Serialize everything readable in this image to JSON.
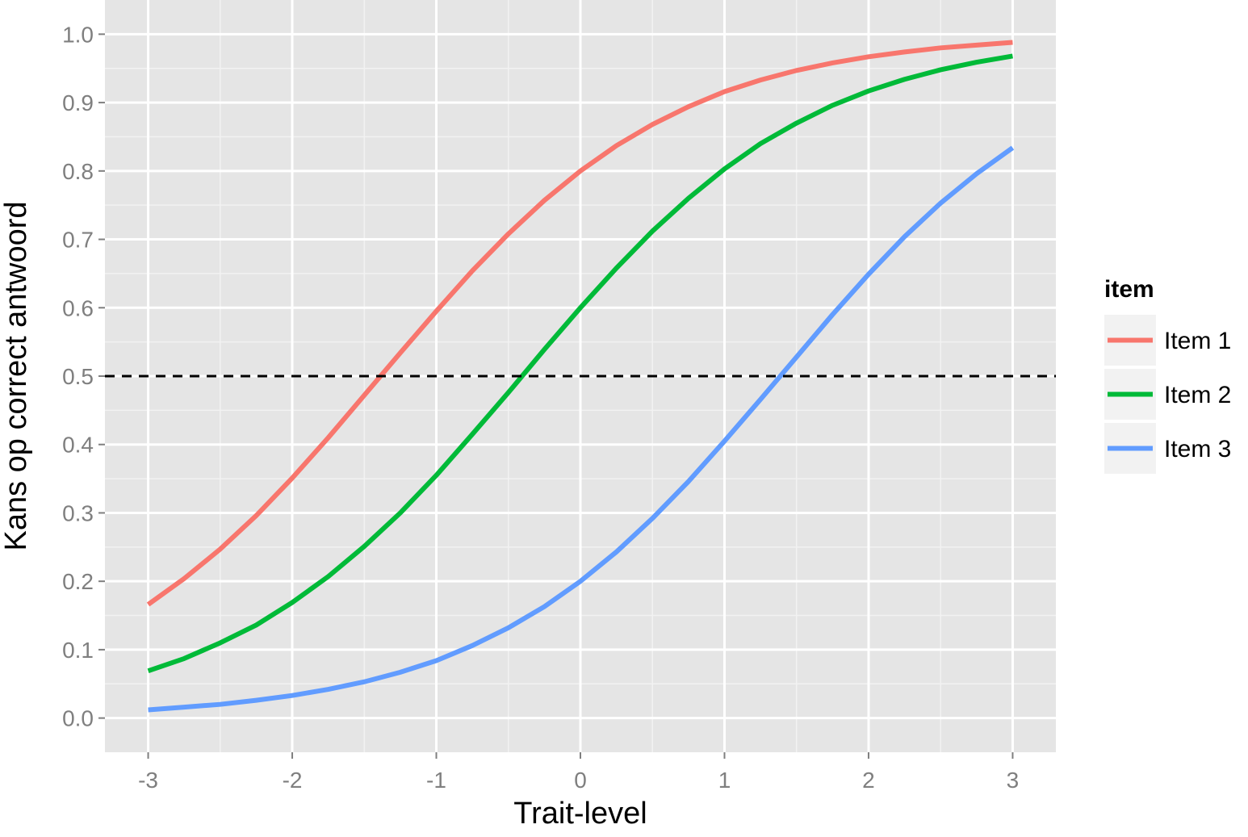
{
  "chart_data": {
    "type": "line",
    "xlabel": "Trait-level",
    "ylabel": "Kans op correct antwoord",
    "legend_title": "item",
    "legend": "right",
    "grid": true,
    "x": [
      -3,
      -2.75,
      -2.5,
      -2.25,
      -2,
      -1.75,
      -1.5,
      -1.25,
      -1,
      -0.75,
      -0.5,
      -0.25,
      0,
      0.25,
      0.5,
      0.75,
      1,
      1.25,
      1.5,
      1.75,
      2,
      2.25,
      2.5,
      2.75,
      3
    ],
    "series": [
      {
        "name": "Item 1",
        "color": "#f8766d",
        "values": [
          0.166,
          0.204,
          0.247,
          0.296,
          0.351,
          0.41,
          0.472,
          0.534,
          0.595,
          0.654,
          0.708,
          0.757,
          0.8,
          0.837,
          0.868,
          0.894,
          0.916,
          0.933,
          0.947,
          0.958,
          0.967,
          0.974,
          0.98,
          0.984,
          0.988
        ]
      },
      {
        "name": "Item 2",
        "color": "#00ba38",
        "values": [
          0.069,
          0.087,
          0.11,
          0.136,
          0.169,
          0.207,
          0.251,
          0.3,
          0.355,
          0.415,
          0.476,
          0.539,
          0.6,
          0.658,
          0.712,
          0.76,
          0.803,
          0.84,
          0.87,
          0.896,
          0.917,
          0.934,
          0.948,
          0.959,
          0.968
        ]
      },
      {
        "name": "Item 3",
        "color": "#619cff",
        "values": [
          0.012,
          0.016,
          0.02,
          0.026,
          0.033,
          0.042,
          0.053,
          0.067,
          0.084,
          0.106,
          0.132,
          0.163,
          0.2,
          0.243,
          0.292,
          0.346,
          0.405,
          0.466,
          0.528,
          0.59,
          0.649,
          0.704,
          0.753,
          0.796,
          0.834
        ]
      }
    ],
    "hline": 0.5,
    "xlim": [
      -3.3,
      3.3
    ],
    "ylim": [
      -0.05,
      1.05
    ],
    "xticks": [
      -3,
      -2,
      -1,
      0,
      1,
      2,
      3
    ],
    "yticks": [
      {
        "value": 0,
        "label": "0.0"
      },
      0.1,
      0.2,
      0.3,
      0.4,
      0.5,
      0.6,
      0.7,
      0.8,
      0.9,
      {
        "value": 1,
        "label": "1.0"
      }
    ]
  }
}
